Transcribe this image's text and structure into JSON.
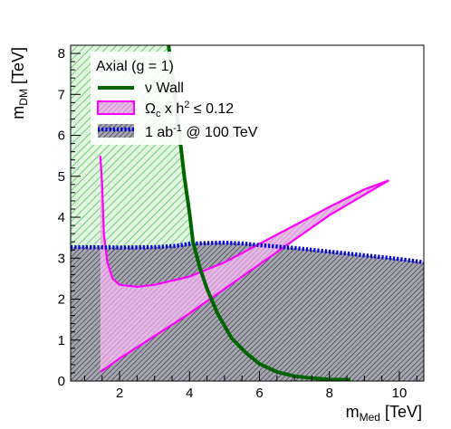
{
  "chart_data": {
    "type": "line",
    "xlim": [
      0.6,
      10.7
    ],
    "ylim": [
      0,
      8.2
    ],
    "x_ticks": [
      2,
      4,
      6,
      8,
      10
    ],
    "y_ticks": [
      0,
      1,
      2,
      3,
      4,
      5,
      6,
      7,
      8
    ],
    "x_tick_labels": [
      "2",
      "4",
      "6",
      "8",
      "10"
    ],
    "y_tick_labels": [
      "0",
      "1",
      "2",
      "3",
      "4",
      "5",
      "6",
      "7",
      "8"
    ],
    "xlabel_main": "m",
    "xlabel_sub": "Med",
    "xlabel_unit": " [TeV]",
    "ylabel_main": "m",
    "ylabel_sub": "DM",
    "ylabel_unit": " [TeV]",
    "legend": {
      "position": "top-left",
      "header": "Axial (g = 1)",
      "nu_wall": {
        "symbol": "ν",
        "text": " Wall"
      },
      "relic": {
        "omega": "Ω",
        "omega_sub": "c",
        "text_a": " x h",
        "exp": "2",
        "text_b": " ≤ 0.12"
      },
      "collider": {
        "pre": "1 ab",
        "exp": "-1",
        "post": " @ 100 TeV"
      }
    },
    "series": [
      {
        "key": "nu_wall",
        "color": "#006400",
        "x": [
          3.4,
          3.55,
          3.7,
          3.85,
          4.0,
          4.1,
          4.3,
          4.5,
          4.8,
          5.2,
          5.6,
          6.0,
          6.5,
          7.0,
          7.5,
          8.0,
          8.6
        ],
        "y": [
          8.2,
          7.2,
          6.1,
          5.0,
          4.1,
          3.4,
          2.75,
          2.25,
          1.65,
          1.05,
          0.7,
          0.42,
          0.22,
          0.12,
          0.07,
          0.04,
          0.03
        ]
      },
      {
        "key": "relic",
        "color": "#ff00ff",
        "fill": "#dda0dd",
        "lower_x": [
          1.45,
          2.0,
          3.0,
          4.0,
          5.0,
          6.0,
          7.0,
          8.0,
          9.0,
          9.7
        ],
        "lower_y": [
          0.22,
          0.55,
          1.1,
          1.65,
          2.25,
          2.85,
          3.45,
          4.05,
          4.55,
          4.9
        ],
        "upper_x": [
          9.7,
          9.0,
          8.0,
          7.0,
          6.0,
          5.0,
          4.0,
          3.0,
          2.5,
          2.0,
          1.8,
          1.65,
          1.55,
          1.5,
          1.45
        ],
        "upper_y": [
          4.9,
          4.68,
          4.25,
          3.8,
          3.35,
          2.9,
          2.55,
          2.35,
          2.3,
          2.35,
          2.5,
          2.9,
          3.6,
          4.8,
          5.5
        ]
      },
      {
        "key": "collider",
        "color": "#0000cd",
        "x": [
          0.6,
          1.0,
          2.0,
          3.0,
          3.6,
          4.0,
          4.5,
          5.0,
          5.5,
          6.0,
          7.0,
          8.0,
          9.0,
          10.0,
          10.7
        ],
        "y": [
          3.27,
          3.27,
          3.26,
          3.27,
          3.3,
          3.35,
          3.37,
          3.38,
          3.36,
          3.32,
          3.25,
          3.16,
          3.07,
          2.98,
          2.9
        ]
      }
    ]
  }
}
